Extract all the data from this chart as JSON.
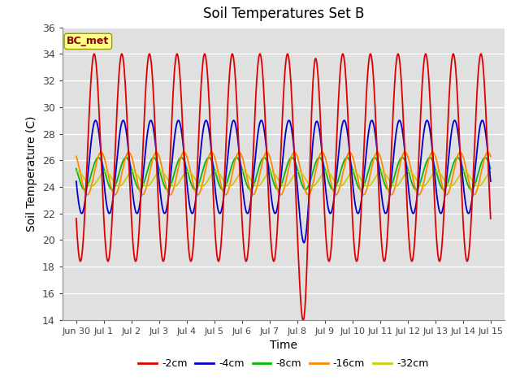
{
  "title": "Soil Temperatures Set B",
  "xlabel": "Time",
  "ylabel": "Soil Temperature (C)",
  "ylim": [
    14,
    36
  ],
  "annotation": "BC_met",
  "series": [
    {
      "label": "-2cm",
      "color": "#dd0000"
    },
    {
      "label": "-4cm",
      "color": "#0000cc"
    },
    {
      "label": "-8cm",
      "color": "#00bb00"
    },
    {
      "label": "-16cm",
      "color": "#ff8800"
    },
    {
      "label": "-32cm",
      "color": "#cccc00"
    }
  ],
  "yticks": [
    14,
    16,
    18,
    20,
    22,
    24,
    26,
    28,
    30,
    32,
    34,
    36
  ],
  "xtick_labels": [
    "Jun 30",
    "Jul 1",
    "Jul 2",
    "Jul 3",
    "Jul 4",
    "Jul 5",
    "Jul 6",
    "Jul 7",
    "Jul 8",
    "Jul 9",
    "Jul 10",
    "Jul 11",
    "Jul 12",
    "Jul 13",
    "Jul 14",
    "Jul 15"
  ],
  "xtick_positions": [
    0,
    1,
    2,
    3,
    4,
    5,
    6,
    7,
    8,
    9,
    10,
    11,
    12,
    13,
    14,
    15
  ]
}
